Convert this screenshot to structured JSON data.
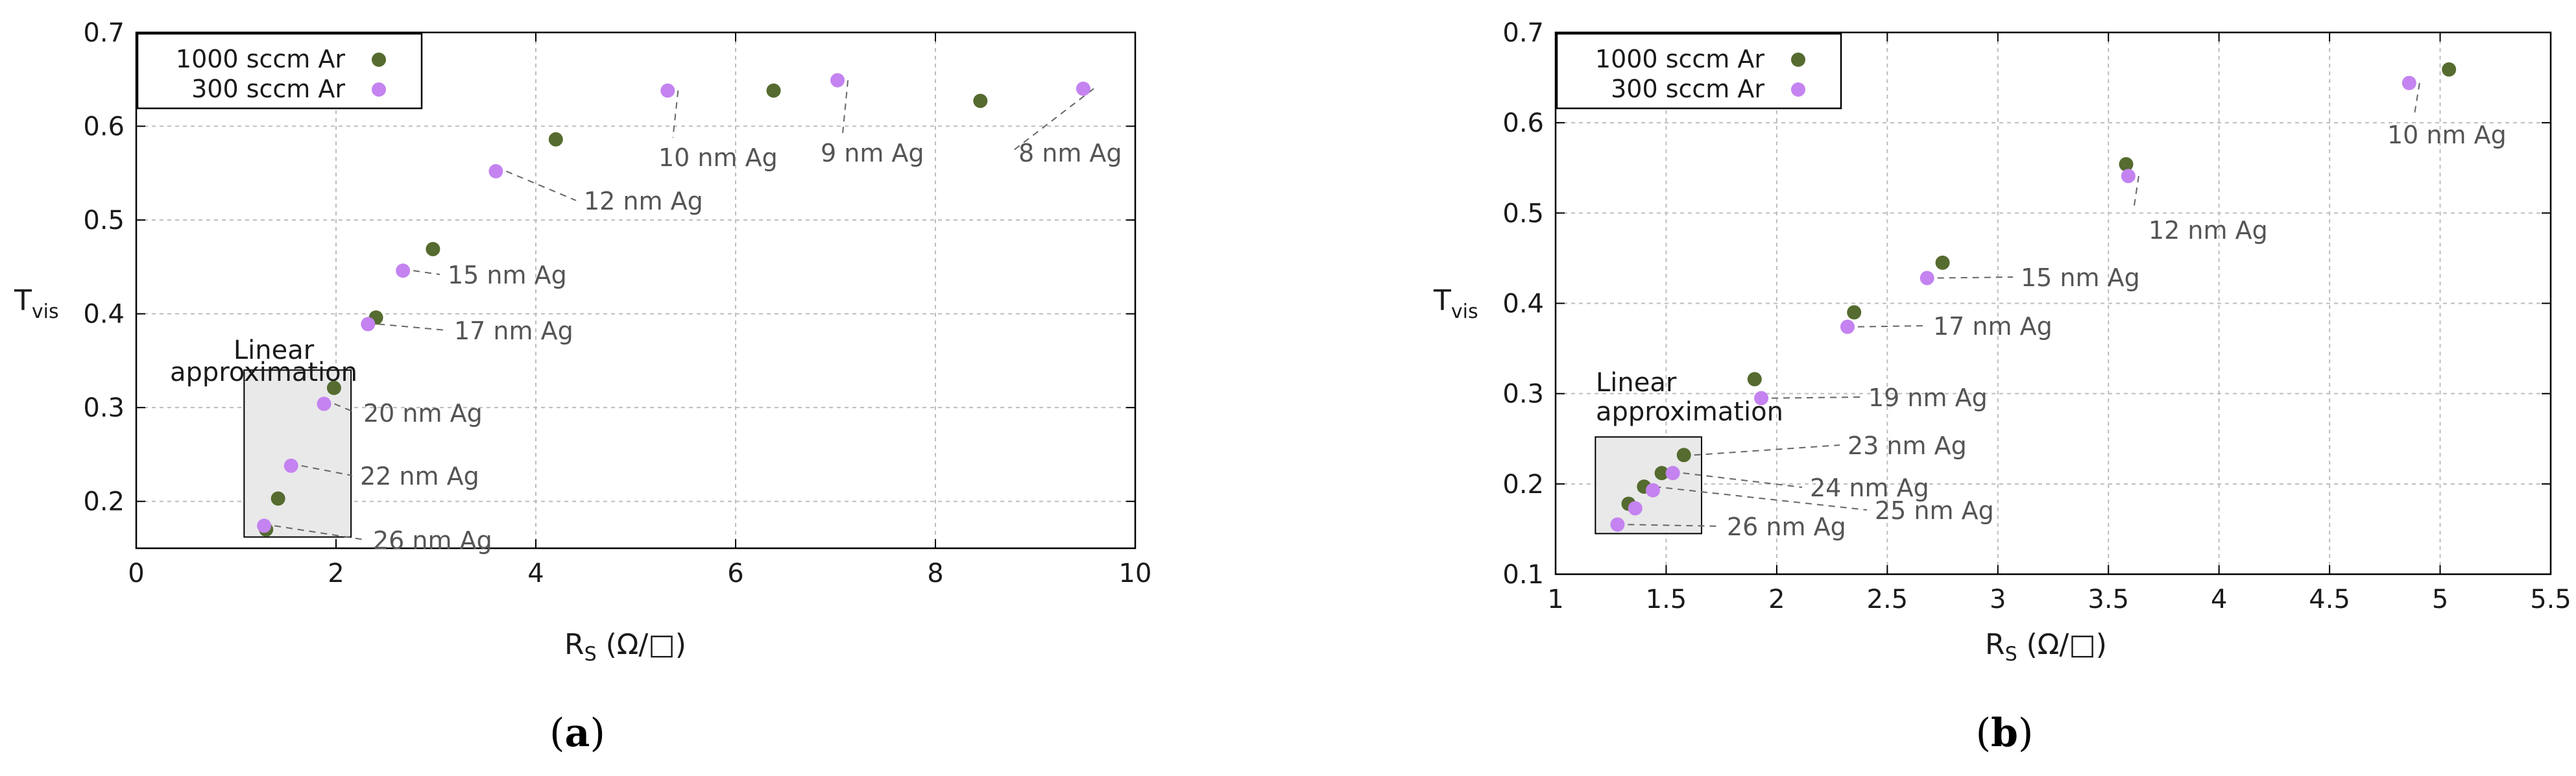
{
  "colors": {
    "series1": "#556b2f",
    "series2": "#c483f0",
    "grid": "#bdbdbd",
    "box_fill": "#e9e9e9",
    "ann_line": "#666666"
  },
  "chart_data": [
    {
      "type": "scatter",
      "panel_label": "a",
      "ylabel": "T",
      "ylabel_sub": "vis",
      "xlabel": "R",
      "xlabel_sub": "S",
      "xlabel_unit": "(Ω/□)",
      "xlim": [
        0,
        10
      ],
      "ylim": [
        0.15,
        0.7
      ],
      "xticks": [
        0,
        2,
        4,
        6,
        8,
        10
      ],
      "yticks": [
        0.2,
        0.3,
        0.4,
        0.5,
        0.6,
        0.7
      ],
      "grid": true,
      "legend_position": "top-left",
      "box_label": [
        "Linear",
        "approximation"
      ],
      "series": [
        {
          "name": "1000 sccm Ar",
          "color_key": "series1",
          "x": [
            1.3,
            1.42,
            1.98,
            2.4,
            2.97,
            4.2,
            6.38,
            8.45
          ],
          "y": [
            0.17,
            0.203,
            0.321,
            0.396,
            0.469,
            0.586,
            0.638,
            0.627
          ]
        },
        {
          "name": "300 sccm Ar",
          "color_key": "series2",
          "x": [
            1.28,
            1.55,
            1.88,
            2.32,
            2.67,
            3.6,
            5.32,
            7.02,
            9.48
          ],
          "y": [
            0.174,
            0.238,
            0.304,
            0.389,
            0.446,
            0.552,
            0.638,
            0.649,
            0.64
          ]
        }
      ],
      "annotations": [
        {
          "text": "26 nm Ag"
        },
        {
          "text": "22 nm Ag"
        },
        {
          "text": "20 nm Ag"
        },
        {
          "text": "17 nm Ag"
        },
        {
          "text": "15 nm Ag"
        },
        {
          "text": "12 nm Ag"
        },
        {
          "text": "10 nm Ag"
        },
        {
          "text": "9 nm Ag"
        },
        {
          "text": "8 nm Ag"
        }
      ]
    },
    {
      "type": "scatter",
      "panel_label": "b",
      "ylabel": "T",
      "ylabel_sub": "vis",
      "xlabel": "R",
      "xlabel_sub": "S",
      "xlabel_unit": "(Ω/□)",
      "xlim": [
        1,
        5.5
      ],
      "ylim": [
        0.1,
        0.7
      ],
      "xticks": [
        1,
        1.5,
        2,
        2.5,
        3,
        3.5,
        4,
        4.5,
        5,
        5.5
      ],
      "yticks": [
        0.1,
        0.2,
        0.3,
        0.4,
        0.5,
        0.6,
        0.7
      ],
      "grid": true,
      "legend_position": "top-left",
      "box_label": [
        "Linear",
        "approximation"
      ],
      "series": [
        {
          "name": "1000 sccm Ar",
          "color_key": "series1",
          "x": [
            1.33,
            1.4,
            1.48,
            1.58,
            1.9,
            2.35,
            2.75,
            3.58,
            5.04
          ],
          "y": [
            0.178,
            0.197,
            0.212,
            0.232,
            0.316,
            0.39,
            0.445,
            0.554,
            0.659
          ]
        },
        {
          "name": "300 sccm Ar",
          "color_key": "series2",
          "x": [
            1.28,
            1.36,
            1.44,
            1.53,
            1.93,
            2.32,
            2.68,
            3.59,
            4.86
          ],
          "y": [
            0.155,
            0.173,
            0.193,
            0.212,
            0.295,
            0.374,
            0.428,
            0.541,
            0.644
          ]
        }
      ],
      "annotations": [
        {
          "text": "10 nm Ag"
        },
        {
          "text": "12 nm Ag"
        },
        {
          "text": "15 nm Ag"
        },
        {
          "text": "17 nm Ag"
        },
        {
          "text": "19 nm Ag"
        },
        {
          "text": "23 nm Ag"
        },
        {
          "text": "24 nm Ag"
        },
        {
          "text": "25 nm Ag"
        },
        {
          "text": "26 nm Ag"
        }
      ]
    }
  ]
}
